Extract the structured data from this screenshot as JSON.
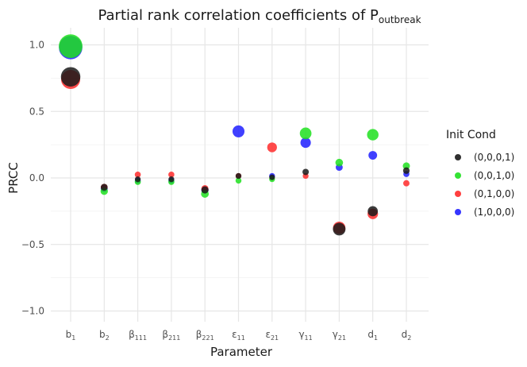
{
  "chart_data": {
    "type": "scatter",
    "title": {
      "main": "Partial rank correlation coefficients of P",
      "sub": "outbreak"
    },
    "xlabel": "Parameter",
    "ylabel": "PRCC",
    "ylim": [
      -1.0,
      1.0
    ],
    "y_ticks": [
      {
        "value": 1.0,
        "label": "1.0"
      },
      {
        "value": 0.5,
        "label": "0.5"
      },
      {
        "value": 0.0,
        "label": "0.0"
      },
      {
        "value": -0.5,
        "label": "−0.5"
      },
      {
        "value": -1.0,
        "label": "−1.0"
      }
    ],
    "grid": true,
    "categories": [
      {
        "base": "b",
        "sub": "1"
      },
      {
        "base": "b",
        "sub": "2"
      },
      {
        "base": "β",
        "sub": "111"
      },
      {
        "base": "β",
        "sub": "211"
      },
      {
        "base": "β",
        "sub": "221"
      },
      {
        "base": "ε",
        "sub": "11"
      },
      {
        "base": "ε",
        "sub": "21"
      },
      {
        "base": "γ",
        "sub": "11"
      },
      {
        "base": "γ",
        "sub": "21"
      },
      {
        "base": "d",
        "sub": "1"
      },
      {
        "base": "d",
        "sub": "2"
      }
    ],
    "legend": {
      "title": "Init Cond",
      "placement": "right"
    },
    "series": [
      {
        "name": "(1,0,0,0)",
        "color": "#1f1fff",
        "values": [
          0.98,
          -0.08,
          -0.02,
          -0.02,
          -0.09,
          0.35,
          0.015,
          0.265,
          0.08,
          0.17,
          0.03
        ]
      },
      {
        "name": "(0,1,0,0)",
        "color": "#ff2a2a",
        "values": [
          0.74,
          -0.07,
          0.025,
          0.025,
          -0.08,
          0.015,
          0.23,
          0.015,
          -0.375,
          -0.27,
          -0.04
        ]
      },
      {
        "name": "(0,0,1,0)",
        "color": "#1ee01e",
        "values": [
          0.99,
          -0.1,
          -0.03,
          -0.03,
          -0.12,
          -0.02,
          -0.01,
          0.335,
          0.115,
          0.325,
          0.09
        ]
      },
      {
        "name": "(0,0,0,1)",
        "color": "#1a1a1a",
        "values": [
          0.76,
          -0.07,
          -0.01,
          -0.01,
          -0.09,
          0.015,
          0.005,
          0.045,
          -0.385,
          -0.25,
          0.055
        ]
      }
    ]
  }
}
